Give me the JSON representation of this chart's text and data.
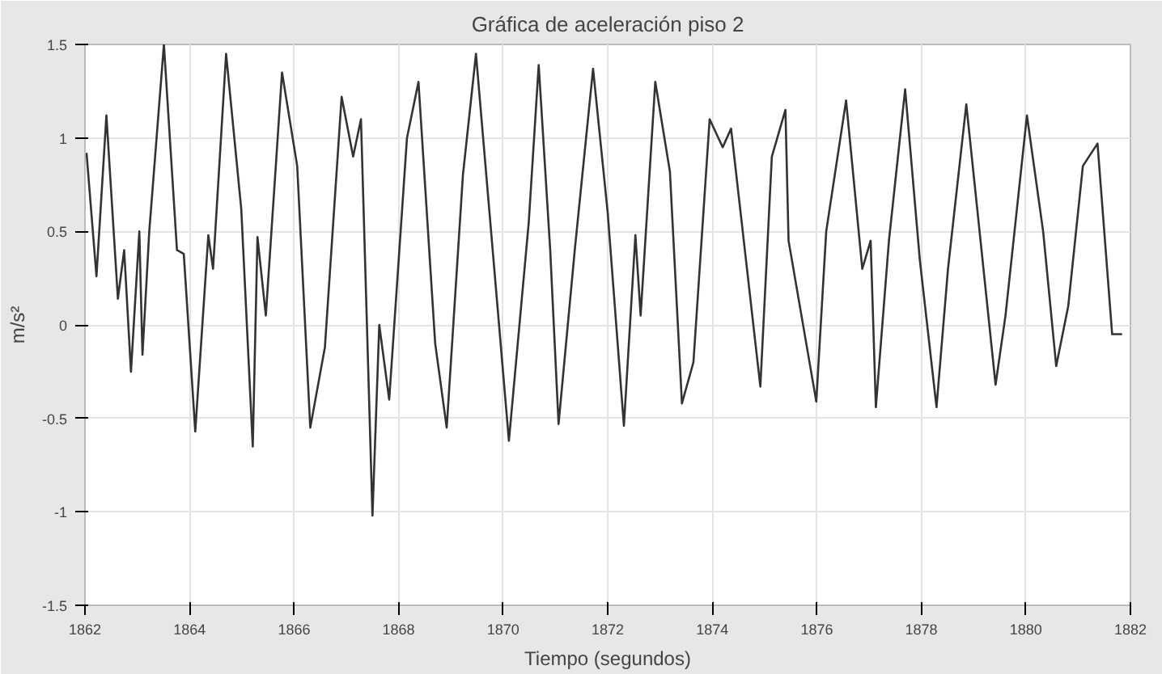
{
  "chart_data": {
    "type": "line",
    "title": "Gráfica de aceleración piso 2",
    "xlabel": "Tiempo (segundos)",
    "ylabel": "m/s²",
    "xlim": [
      1862,
      1882
    ],
    "xticks": [
      1862,
      1864,
      1866,
      1868,
      1870,
      1872,
      1874,
      1876,
      1878,
      1880,
      1882
    ],
    "ylim": [
      -1.5,
      1.5
    ],
    "yticks": [
      -1.5,
      -1,
      -0.5,
      0,
      0.5,
      1,
      1.5
    ],
    "grid": true,
    "marker": "none",
    "line_style": "solid",
    "series": [
      {
        "color": "#333333",
        "x": [
          1862.03,
          1862.22,
          1862.41,
          1862.63,
          1862.75,
          1862.88,
          1863.04,
          1863.1,
          1863.23,
          1863.51,
          1863.76,
          1863.89,
          1864.11,
          1864.36,
          1864.45,
          1864.7,
          1864.99,
          1865.21,
          1865.3,
          1865.46,
          1865.77,
          1866.06,
          1866.31,
          1866.59,
          1866.91,
          1867.13,
          1867.28,
          1867.5,
          1867.63,
          1867.82,
          1868.16,
          1868.38,
          1868.7,
          1868.92,
          1869.23,
          1869.48,
          1870.11,
          1870.49,
          1870.68,
          1870.9,
          1871.06,
          1871.37,
          1871.72,
          1872.0,
          1872.31,
          1872.53,
          1872.63,
          1872.91,
          1873.19,
          1873.42,
          1873.64,
          1873.95,
          1874.2,
          1874.36,
          1874.92,
          1875.14,
          1875.4,
          1875.46,
          1875.99,
          1876.18,
          1876.56,
          1876.87,
          1877.03,
          1877.13,
          1877.38,
          1877.69,
          1877.97,
          1878.29,
          1878.51,
          1878.86,
          1879.17,
          1879.42,
          1879.61,
          1880.02,
          1880.33,
          1880.58,
          1880.81,
          1881.09,
          1881.37,
          1881.65,
          1881.84
        ],
        "values": [
          0.92,
          0.26,
          1.12,
          0.14,
          0.4,
          -0.25,
          0.5,
          -0.16,
          0.5,
          1.5,
          0.4,
          0.38,
          -0.57,
          0.48,
          0.3,
          1.45,
          0.62,
          -0.65,
          0.47,
          0.05,
          1.35,
          0.85,
          -0.55,
          -0.12,
          1.22,
          0.9,
          1.1,
          -1.02,
          0.0,
          -0.4,
          1.0,
          1.3,
          -0.1,
          -0.55,
          0.8,
          1.45,
          -0.62,
          0.55,
          1.39,
          0.4,
          -0.53,
          0.4,
          1.37,
          0.6,
          -0.54,
          0.48,
          0.05,
          1.3,
          0.82,
          -0.42,
          -0.2,
          1.1,
          0.95,
          1.05,
          -0.33,
          0.9,
          1.15,
          0.45,
          -0.41,
          0.5,
          1.2,
          0.3,
          0.45,
          -0.44,
          0.45,
          1.26,
          0.35,
          -0.44,
          0.3,
          1.18,
          0.35,
          -0.32,
          0.05,
          1.12,
          0.5,
          -0.22,
          0.1,
          0.85,
          0.97,
          -0.05,
          -0.05
        ]
      }
    ]
  }
}
